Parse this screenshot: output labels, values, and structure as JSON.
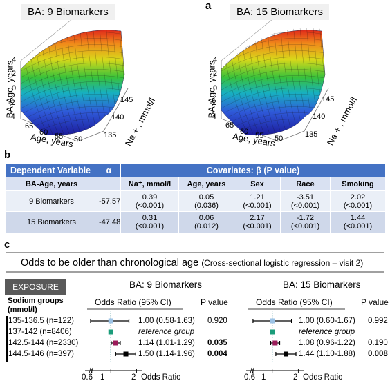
{
  "panel_a": {
    "letter": "a",
    "plots": [
      {
        "title": "BA: 9 Biomarkers",
        "z_label": "BA-Age, years",
        "x_label": "Age, years",
        "y_label": "Na + , mmol/l",
        "z_ticks": [
          "4",
          "2",
          "0",
          "-2",
          "-4"
        ],
        "x_ticks": [
          "65",
          "60",
          "55",
          "50"
        ],
        "y_ticks": [
          "135",
          "140",
          "145"
        ]
      },
      {
        "title": "BA: 15 Biomarkers",
        "z_label": "BA-Age, years",
        "x_label": "Age, years",
        "y_label": "Na + , mmol/l",
        "z_ticks": [
          "4",
          "2",
          "0",
          "-2",
          "-4"
        ],
        "x_ticks": [
          "65",
          "60",
          "55",
          "50"
        ],
        "y_ticks": [
          "135",
          "140",
          "145"
        ]
      }
    ]
  },
  "panel_b": {
    "letter": "b",
    "header": {
      "dependent": "Dependent Variable",
      "alpha": "α",
      "covariates": "Covariates: β (P value)"
    },
    "subheader": [
      "BA-Age, years",
      "",
      "Na⁺, mmol/l",
      "Age, years",
      "Sex",
      "Race",
      "Smoking"
    ],
    "rows": [
      {
        "label": "9 Biomarkers",
        "alpha": "-57.57",
        "cells": [
          [
            "0.39",
            "(<0.001)"
          ],
          [
            "0.05",
            "(0.036)"
          ],
          [
            "1.21",
            "(<0.001)"
          ],
          [
            "-3.51",
            "(<0.001)"
          ],
          [
            "2.02",
            "(<0.001)"
          ]
        ]
      },
      {
        "label": "15 Biomarkers",
        "alpha": "-47.48",
        "cells": [
          [
            "0.31",
            "(<0.001)"
          ],
          [
            "0.06",
            "(0.012)"
          ],
          [
            "2.17",
            "(<0.001)"
          ],
          [
            "-1.72",
            "(<0.001)"
          ],
          [
            "1.44",
            "(<0.001)"
          ]
        ]
      }
    ]
  },
  "panel_c": {
    "letter": "c",
    "title": "Odds to be older than chronological age",
    "title_sub": "(Cross-sectional logistic regression – visit 2)",
    "exposure": "EXPOSURE",
    "group_header": [
      "Sodium groups",
      "(mmol/l)"
    ],
    "groups": [
      "135-136.5 (n=122)",
      "137-142 (n=8406)",
      "142.5-144 (n=2330)",
      "144.5-146 (n=397)"
    ],
    "marker_colors": [
      "#9dc3e6",
      "#1a9c7a",
      "#9b1b5a",
      "#000000"
    ],
    "axis_ticks": [
      "0.6",
      "1",
      "2"
    ],
    "axis_title": "Odds Ratio",
    "forests": [
      {
        "title": "BA: 9 Biomarkers",
        "or_header": "Odds Ratio (95% CI)",
        "p_header": "P value",
        "rows": [
          {
            "or": 1.0,
            "lo": 0.58,
            "hi": 1.63,
            "text": "1.00 (0.58-1.63)",
            "p": "0.920",
            "bold": false
          },
          {
            "or": 1.0,
            "text": "reference group",
            "p": "",
            "ref": true
          },
          {
            "or": 1.14,
            "lo": 1.01,
            "hi": 1.29,
            "text": "1.14 (1.01-1.29)",
            "p": "0.035",
            "bold": true
          },
          {
            "or": 1.5,
            "lo": 1.14,
            "hi": 1.96,
            "text": "1.50 (1.14-1.96)",
            "p": "0.004",
            "bold": true
          }
        ]
      },
      {
        "title": "BA: 15 Biomarkers",
        "or_header": "Odds Ratio (95% CI)",
        "p_header": "P value",
        "rows": [
          {
            "or": 1.0,
            "lo": 0.6,
            "hi": 1.67,
            "text": "1.00 (0.60-1.67)",
            "p": "0.992",
            "bold": false
          },
          {
            "or": 1.0,
            "text": "reference group",
            "p": "",
            "ref": true
          },
          {
            "or": 1.08,
            "lo": 0.96,
            "hi": 1.22,
            "text": "1.08 (0.96-1.22)",
            "p": "0.190",
            "bold": false
          },
          {
            "or": 1.44,
            "lo": 1.1,
            "hi": 1.88,
            "text": "1.44 (1.10-1.88)",
            "p": "0.008",
            "bold": true
          }
        ]
      }
    ]
  }
}
